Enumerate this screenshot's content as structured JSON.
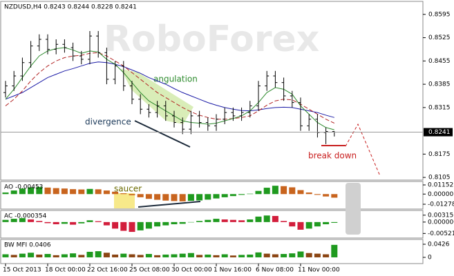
{
  "chart_data": [
    {
      "type": "ohlc",
      "title": "NZDUSD,H4 0.8243 0.8244 0.8228 0.8241",
      "watermark": "RoboForex",
      "annotations": [
        "angulation",
        "divergence",
        "break down"
      ],
      "categories": [
        "15 Oct 2013",
        null,
        null,
        null,
        null,
        "18 Oct 00:00",
        null,
        null,
        null,
        null,
        "22 Oct 16:00",
        null,
        null,
        null,
        null,
        "25 Oct 08:00",
        null,
        null,
        null,
        null,
        "30 Oct 00:00",
        null,
        null,
        null,
        null,
        "1 Nov 16:00",
        null,
        null,
        null,
        null,
        "6 Nov 08:00",
        null,
        null,
        null,
        null,
        "11 Nov 00:00",
        null,
        null,
        null,
        null
      ],
      "open": [
        0.836,
        0.838,
        0.841,
        0.845,
        0.85,
        0.852,
        0.849,
        0.8505,
        0.8495,
        0.847,
        0.846,
        0.853,
        0.848,
        0.84,
        0.844,
        0.838,
        0.834,
        0.831,
        0.83,
        0.832,
        0.829,
        0.827,
        0.825,
        0.829,
        0.827,
        0.826,
        0.828,
        0.83,
        0.829,
        0.83,
        0.832,
        0.838,
        0.841,
        0.839,
        0.835,
        0.833,
        0.826,
        0.828,
        0.824,
        0.8243
      ],
      "high": [
        0.8395,
        0.8425,
        0.8465,
        0.8515,
        0.8535,
        0.8535,
        0.852,
        0.852,
        0.851,
        0.8485,
        0.8545,
        0.8545,
        0.8495,
        0.8455,
        0.8455,
        0.8395,
        0.8355,
        0.8325,
        0.8335,
        0.8335,
        0.8305,
        0.8285,
        0.8305,
        0.8305,
        0.8285,
        0.8295,
        0.8315,
        0.8315,
        0.8315,
        0.8335,
        0.8395,
        0.8425,
        0.8425,
        0.8405,
        0.8365,
        0.8345,
        0.8295,
        0.8295,
        0.8255,
        0.8244
      ],
      "low": [
        0.8345,
        0.8365,
        0.8395,
        0.8435,
        0.8485,
        0.8475,
        0.8475,
        0.848,
        0.8455,
        0.8445,
        0.8445,
        0.8465,
        0.8385,
        0.8385,
        0.8365,
        0.8325,
        0.8295,
        0.8285,
        0.8285,
        0.8275,
        0.8255,
        0.8235,
        0.8235,
        0.8255,
        0.8245,
        0.8245,
        0.8265,
        0.8275,
        0.8275,
        0.8285,
        0.8305,
        0.8365,
        0.8375,
        0.8335,
        0.8315,
        0.8245,
        0.8245,
        0.8225,
        0.8205,
        0.8228
      ],
      "close": [
        0.838,
        0.841,
        0.845,
        0.85,
        0.852,
        0.849,
        0.8505,
        0.8495,
        0.847,
        0.846,
        0.853,
        0.848,
        0.84,
        0.844,
        0.838,
        0.834,
        0.831,
        0.83,
        0.832,
        0.829,
        0.827,
        0.825,
        0.829,
        0.827,
        0.826,
        0.828,
        0.83,
        0.829,
        0.83,
        0.832,
        0.838,
        0.841,
        0.839,
        0.835,
        0.833,
        0.826,
        0.828,
        0.824,
        0.8243,
        0.8241
      ],
      "moving_averages": [
        {
          "color": "#1a1aa6",
          "dashed": false,
          "values": [
            0.834,
            0.835,
            0.836,
            0.8375,
            0.839,
            0.8405,
            0.8415,
            0.8425,
            0.8432,
            0.844,
            0.8448,
            0.8452,
            0.845,
            0.8445,
            0.8438,
            0.8428,
            0.8418,
            0.8405,
            0.8395,
            0.8385,
            0.8372,
            0.836,
            0.835,
            0.834,
            0.833,
            0.8322,
            0.8315,
            0.831,
            0.8306,
            0.8305,
            0.8308,
            0.8312,
            0.8315,
            0.8316,
            0.8315,
            0.831,
            0.8305,
            0.83,
            0.8292,
            0.8285
          ]
        },
        {
          "color": "#b22222",
          "dashed": true,
          "values": [
            0.832,
            0.834,
            0.8365,
            0.8395,
            0.842,
            0.844,
            0.8455,
            0.8465,
            0.847,
            0.8472,
            0.8478,
            0.848,
            0.847,
            0.8455,
            0.844,
            0.842,
            0.84,
            0.838,
            0.836,
            0.8345,
            0.833,
            0.8315,
            0.8302,
            0.8292,
            0.8285,
            0.828,
            0.828,
            0.8282,
            0.8285,
            0.829,
            0.8305,
            0.8322,
            0.8335,
            0.834,
            0.8338,
            0.8325,
            0.831,
            0.8295,
            0.828,
            0.8268
          ]
        },
        {
          "color": "#2e8b2e",
          "dashed": false,
          "values": [
            0.834,
            0.837,
            0.8405,
            0.844,
            0.847,
            0.8485,
            0.8492,
            0.8495,
            0.8488,
            0.8478,
            0.8485,
            0.8482,
            0.846,
            0.8445,
            0.842,
            0.839,
            0.836,
            0.8335,
            0.832,
            0.8305,
            0.829,
            0.8275,
            0.827,
            0.8268,
            0.8265,
            0.8268,
            0.8275,
            0.8282,
            0.829,
            0.8305,
            0.833,
            0.836,
            0.8375,
            0.837,
            0.8355,
            0.832,
            0.8295,
            0.827,
            0.8255,
            0.8248
          ]
        }
      ],
      "ylim": [
        0.8099,
        0.8632
      ],
      "yticks": [
        0.8595,
        0.8525,
        0.8455,
        0.8385,
        0.8315,
        0.8175,
        0.8105
      ]
    },
    {
      "type": "bar",
      "title": "AO -0.00453",
      "annotation": "saucer",
      "up_color": "#1f9a1f",
      "down_color": "#c8641e",
      "values": [
        0.002,
        0.0045,
        0.007,
        0.0085,
        0.009,
        0.0082,
        0.0075,
        0.007,
        0.0062,
        0.0058,
        0.0065,
        0.006,
        0.0045,
        0.003,
        0.001,
        -0.0015,
        -0.004,
        -0.006,
        -0.0072,
        -0.0082,
        -0.0088,
        -0.0092,
        -0.0085,
        -0.008,
        -0.007,
        -0.0055,
        -0.004,
        -0.0025,
        -0.001,
        0.0005,
        0.004,
        0.008,
        0.0105,
        0.01,
        0.0085,
        0.005,
        0.002,
        -0.001,
        -0.003,
        -0.00453
      ],
      "ylim": [
        -0.018,
        0.015
      ],
      "yticks": [
        0.01152,
        {
          "value": 0,
          "label": "0.00000"
        },
        -0.01278
      ]
    },
    {
      "type": "bar",
      "title": "AC -0.000354",
      "up_color": "#1f9a1f",
      "down_color": "#d21e3c",
      "values": [
        0.001,
        0.0015,
        0.0018,
        0.0012,
        0.0005,
        -0.0005,
        -0.001,
        -0.0008,
        -0.0012,
        -0.0006,
        0.0008,
        0.0004,
        -0.0015,
        -0.003,
        -0.004,
        -0.0045,
        -0.0038,
        -0.003,
        -0.002,
        -0.0015,
        -0.001,
        -0.0008,
        0.0,
        0.0005,
        0.001,
        0.0015,
        0.0012,
        0.001,
        0.0008,
        0.0012,
        0.0025,
        0.003,
        0.0028,
        0.0005,
        -0.002,
        -0.0035,
        -0.003,
        -0.002,
        -0.001,
        -0.000354
      ],
      "ylim": [
        -0.007,
        0.005
      ],
      "yticks": [
        0.003156,
        {
          "value": 0,
          "label": "0.000000"
        },
        -0.00521
      ]
    },
    {
      "type": "bar",
      "title": "BW MFI 0.0406",
      "up_color": "#1f9a1f",
      "down_color": "#8b4513",
      "values": [
        0.01,
        0.008,
        0.012,
        0.015,
        0.009,
        0.011,
        0.007,
        0.01,
        0.013,
        0.008,
        0.018,
        0.02,
        0.015,
        0.009,
        0.012,
        0.01,
        0.008,
        0.011,
        0.007,
        0.009,
        0.01,
        0.012,
        0.014,
        0.008,
        0.009,
        0.007,
        0.01,
        0.006,
        0.008,
        0.009,
        0.016,
        0.012,
        0.01,
        0.011,
        0.013,
        0.019,
        0.014,
        0.012,
        0.01,
        0.0406
      ],
      "ylim": [
        -0.018,
        0.056
      ],
      "yticks": [
        0.0426,
        0
      ]
    }
  ]
}
